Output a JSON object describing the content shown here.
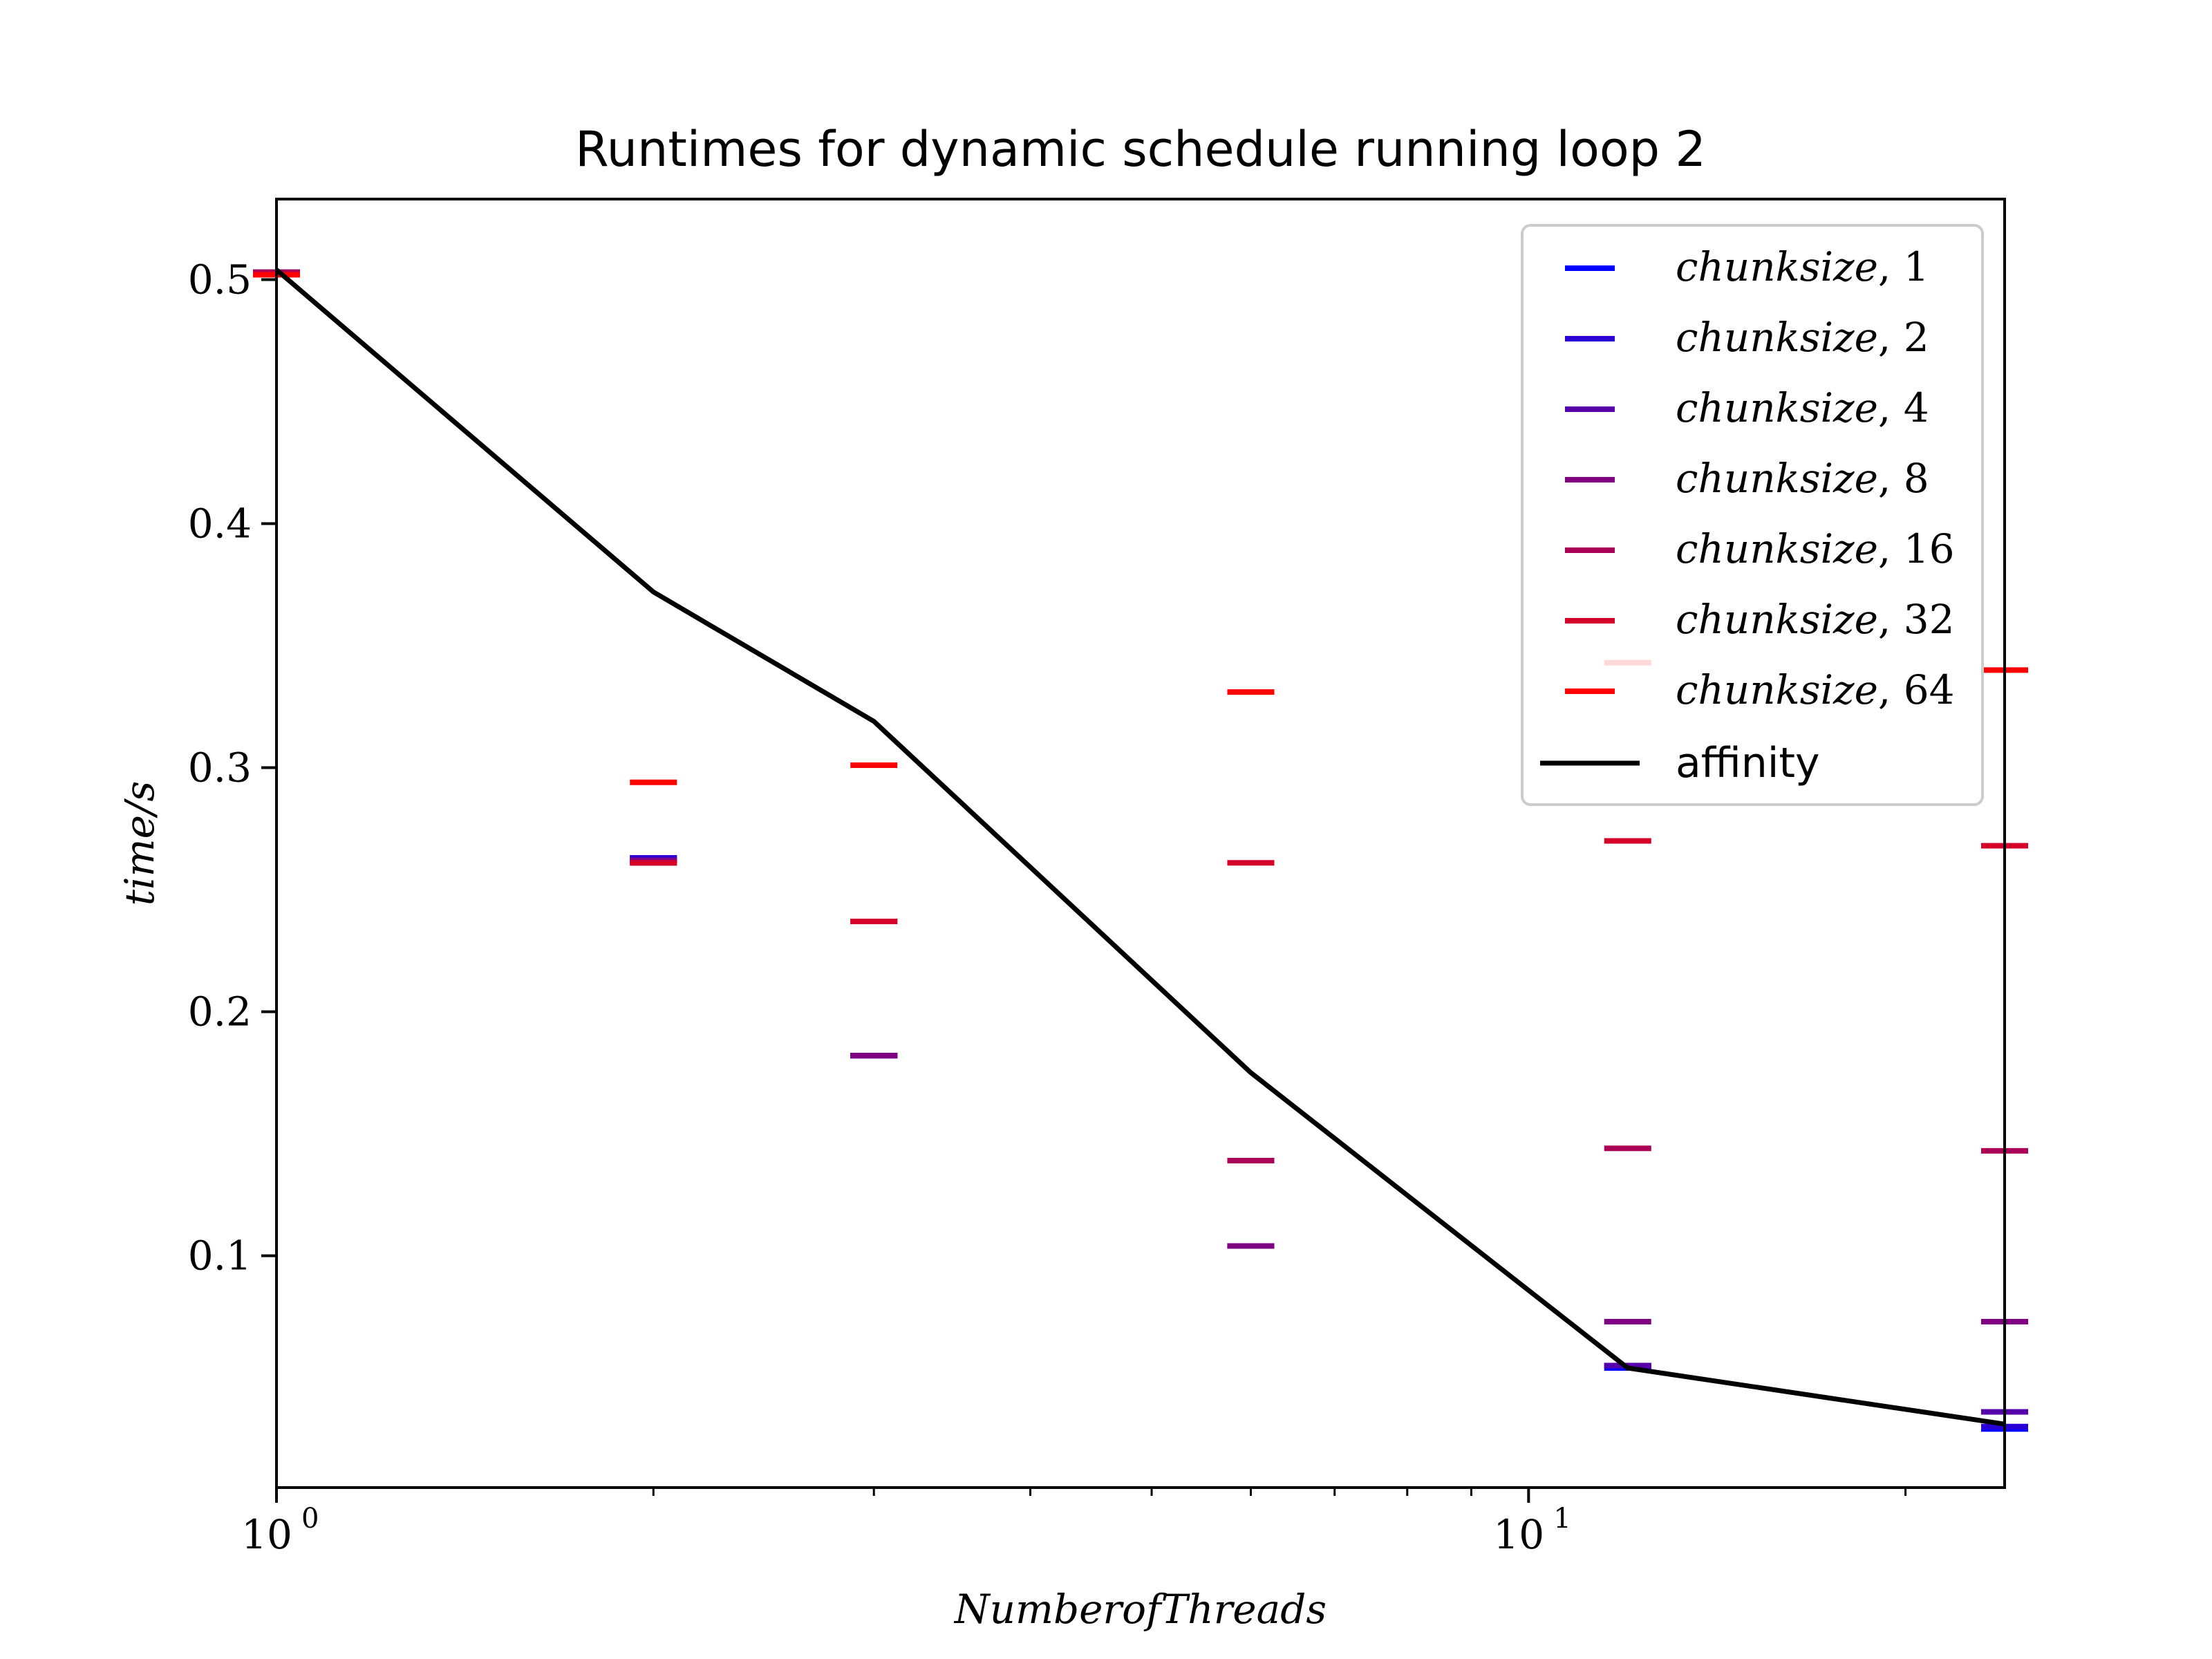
{
  "chart_data": {
    "type": "scatter",
    "title": "Runtimes for dynamic schedule running loop 2",
    "xlabel": "NumberofThreads",
    "ylabel": "time/s",
    "xscale": "log",
    "xlim": [
      1,
      24
    ],
    "ylim": [
      0.005,
      0.533
    ],
    "x_ticks": [
      {
        "value": 1,
        "label": "10",
        "exp": "0"
      },
      {
        "value": 10,
        "label": "10",
        "exp": "1"
      }
    ],
    "y_ticks": [
      {
        "value": 0.1,
        "label": "0.1"
      },
      {
        "value": 0.2,
        "label": "0.2"
      },
      {
        "value": 0.3,
        "label": "0.3"
      },
      {
        "value": 0.4,
        "label": "0.4"
      },
      {
        "value": 0.5,
        "label": "0.5"
      }
    ],
    "x": [
      1,
      2,
      3,
      6,
      12,
      24
    ],
    "series": [
      {
        "name": "chunksize, 1",
        "color": "#0000ff",
        "marker": "hline",
        "values": [
          0.503,
          0.263,
          0.182,
          0.104,
          0.054,
          0.029
        ]
      },
      {
        "name": "chunksize, 2",
        "color": "#2a00d5",
        "marker": "hline",
        "values": [
          0.503,
          0.263,
          0.182,
          0.104,
          0.055,
          0.03
        ]
      },
      {
        "name": "chunksize, 4",
        "color": "#5500aa",
        "marker": "hline",
        "values": [
          0.503,
          0.262,
          0.182,
          0.104,
          0.055,
          0.036
        ]
      },
      {
        "name": "chunksize, 8",
        "color": "#7f0080",
        "marker": "hline",
        "values": [
          0.503,
          0.262,
          0.182,
          0.104,
          0.073,
          0.073
        ]
      },
      {
        "name": "chunksize, 16",
        "color": "#aa0055",
        "marker": "hline",
        "values": [
          0.503,
          0.261,
          0.237,
          0.139,
          0.144,
          0.143
        ]
      },
      {
        "name": "chunksize, 32",
        "color": "#d4002a",
        "marker": "hline",
        "values": [
          0.502,
          0.261,
          0.237,
          0.261,
          0.27,
          0.268
        ]
      },
      {
        "name": "chunksize, 64",
        "color": "#ff0000",
        "marker": "hline",
        "values": [
          0.502,
          0.294,
          0.301,
          0.331,
          0.343,
          0.34
        ]
      },
      {
        "name": "affinity",
        "color": "#000000",
        "marker": "line",
        "values": [
          0.504,
          0.372,
          0.319,
          0.175,
          0.054,
          0.031
        ]
      }
    ],
    "legend": {
      "position": "top-right",
      "entries": [
        {
          "math": "chunksize",
          "num": "1",
          "color": "#0000ff"
        },
        {
          "math": "chunksize",
          "num": "2",
          "color": "#2a00d5"
        },
        {
          "math": "chunksize",
          "num": "4",
          "color": "#5500aa"
        },
        {
          "math": "chunksize",
          "num": "8",
          "color": "#7f0080"
        },
        {
          "math": "chunksize",
          "num": "16",
          "color": "#aa0055"
        },
        {
          "math": "chunksize",
          "num": "32",
          "color": "#d4002a"
        },
        {
          "math": "chunksize",
          "num": "64",
          "color": "#ff0000"
        },
        {
          "text": "affinity",
          "color": "#000000",
          "line": true
        }
      ]
    },
    "grid": false
  }
}
